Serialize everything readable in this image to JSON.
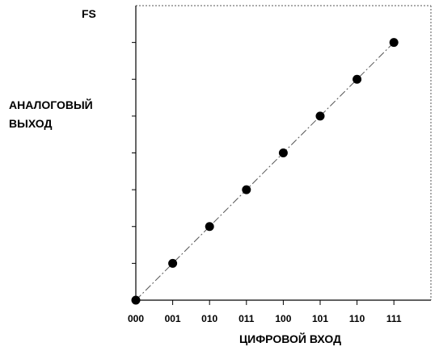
{
  "chart_data": {
    "type": "scatter",
    "title": "",
    "xlabel": "ЦИФРОВОЙ ВХОД",
    "ylabel_lines": [
      "АНАЛОГОВЫЙ",
      "ВЫХОД"
    ],
    "y_top_label": "FS",
    "categories": [
      "000",
      "001",
      "010",
      "011",
      "100",
      "101",
      "110",
      "111"
    ],
    "values": [
      0,
      1,
      2,
      3,
      4,
      5,
      6,
      7
    ],
    "ylim": [
      0,
      8
    ],
    "y_ticks": [
      1,
      2,
      3,
      4,
      5,
      6,
      7
    ],
    "ideal_line": {
      "from": [
        0,
        0
      ],
      "to": [
        7,
        7
      ],
      "style": "dash-dot"
    },
    "grid": false,
    "legend": "none",
    "colors": {
      "points": "#000000",
      "axes": "#000000",
      "ideal_line": "#555555",
      "frame": "#555555"
    }
  }
}
